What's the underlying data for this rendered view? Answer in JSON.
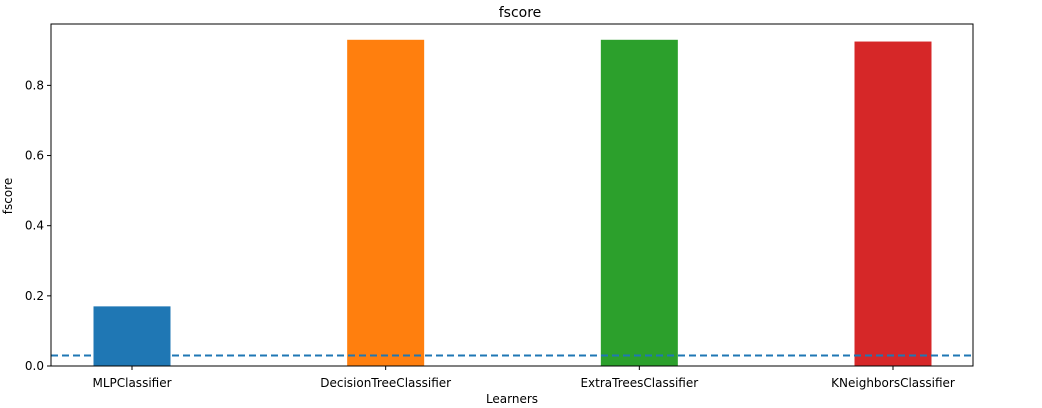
{
  "chart_data": {
    "type": "bar",
    "title": "fscore",
    "xlabel": "Learners",
    "ylabel": "fscore",
    "categories": [
      "MLPClassifier",
      "DecisionTreeClassifier",
      "ExtraTreesClassifier",
      "KNeighborsClassifier"
    ],
    "values": [
      0.17,
      0.93,
      0.93,
      0.925
    ],
    "colors": [
      "#1f77b4",
      "#ff7f0e",
      "#2ca02c",
      "#d62728"
    ],
    "ylim": [
      0,
      0.975
    ],
    "yticks": [
      0.0,
      0.2,
      0.4,
      0.6,
      0.8
    ],
    "ytick_labels": [
      "0.0",
      "0.2",
      "0.4",
      "0.6",
      "0.8"
    ],
    "baseline": {
      "value": 0.03,
      "style": "dashed",
      "color": "#1f77b4"
    },
    "grid": false,
    "legend": "none"
  }
}
